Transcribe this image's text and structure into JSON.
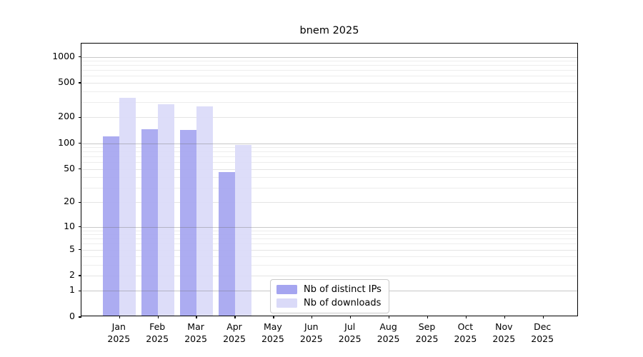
{
  "title": "bnem 2025",
  "legend": {
    "items": [
      {
        "label": "Nb of distinct IPs",
        "color": "#a5a5f0"
      },
      {
        "label": "Nb of downloads",
        "color": "#dadaf8"
      }
    ]
  },
  "chart_data": {
    "type": "bar",
    "title": "bnem 2025",
    "categories": [
      "Jan 2025",
      "Feb 2025",
      "Mar 2025",
      "Apr 2025",
      "May 2025",
      "Jun 2025",
      "Jul 2025",
      "Aug 2025",
      "Sep 2025",
      "Oct 2025",
      "Nov 2025",
      "Dec 2025"
    ],
    "series": [
      {
        "name": "Nb of distinct IPs",
        "color": "#a5a5f0",
        "values": [
          115,
          140,
          137,
          44,
          null,
          null,
          null,
          null,
          null,
          null,
          null,
          null
        ]
      },
      {
        "name": "Nb of downloads",
        "color": "#dadaf8",
        "values": [
          325,
          270,
          258,
          92,
          null,
          null,
          null,
          null,
          null,
          null,
          null,
          null
        ]
      }
    ],
    "yticks": [
      0,
      1,
      2,
      5,
      10,
      20,
      50,
      100,
      200,
      500,
      1000
    ],
    "major_grid_values": [
      1,
      10,
      100,
      1000
    ],
    "y_scale": "log10(1+v)",
    "ylim": [
      0,
      1400
    ],
    "xlabel": "",
    "ylabel": "",
    "grid": "horizontal",
    "legend_position": "bottom-center"
  }
}
